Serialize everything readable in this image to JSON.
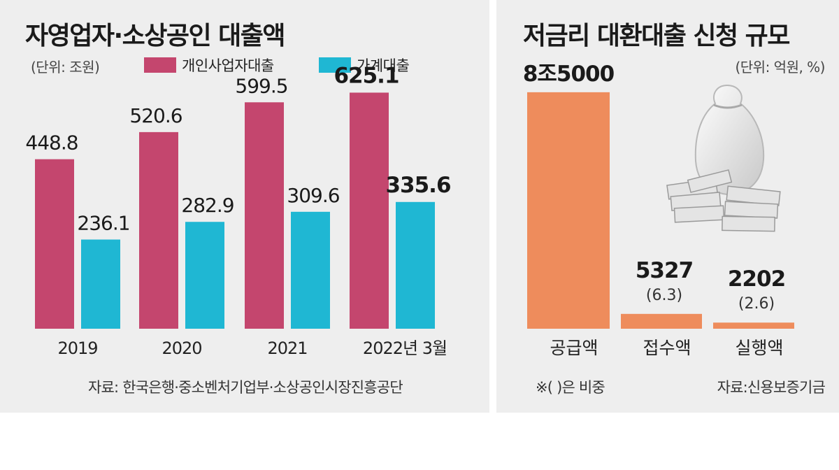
{
  "colors": {
    "business": "#c4466e",
    "household": "#1fb7d3",
    "refinance": "#ee8c5c",
    "panel": "#eeeeee"
  },
  "left_panel": {
    "title": "자영업자·소상공인 대출액",
    "unit": "(단위: 조원)",
    "legend": [
      "개인사업자대출",
      "가계대출"
    ],
    "source": "자료: 한국은행·중소벤처기업부·소상공인시장진흥공단"
  },
  "right_panel": {
    "title": "저금리 대환대출 신청 규모",
    "unit": "(단위: 억원, %)",
    "note": "※( )은 비중",
    "source": "자료:신용보증기금",
    "illustration": "money-bag-icon"
  },
  "chart_data": [
    {
      "type": "bar",
      "title": "자영업자·소상공인 대출액",
      "categories": [
        "2019",
        "2020",
        "2021",
        "2022년 3월"
      ],
      "series": [
        {
          "name": "개인사업자대출",
          "values": [
            448.8,
            520.6,
            599.5,
            625.1
          ],
          "labels": [
            "448.8",
            "520.6",
            "599.5",
            "625.1"
          ],
          "color": "#c4466e"
        },
        {
          "name": "가계대출",
          "values": [
            236.1,
            282.9,
            309.6,
            335.6
          ],
          "labels": [
            "236.1",
            "282.9",
            "309.6",
            "335.6"
          ],
          "color": "#1fb7d3"
        }
      ],
      "ylim": [
        0,
        700
      ],
      "grid": false,
      "legend": "top"
    },
    {
      "type": "bar",
      "title": "저금리 대환대출 신청 규모",
      "categories": [
        "공급액",
        "접수액",
        "실행액"
      ],
      "values": [
        85000,
        5327,
        2202
      ],
      "value_labels": [
        "8조5000",
        "5327",
        "2202"
      ],
      "share_labels": [
        "",
        "(6.3)",
        "(2.6)"
      ],
      "ylim": [
        0,
        90000
      ],
      "grid": false
    }
  ]
}
